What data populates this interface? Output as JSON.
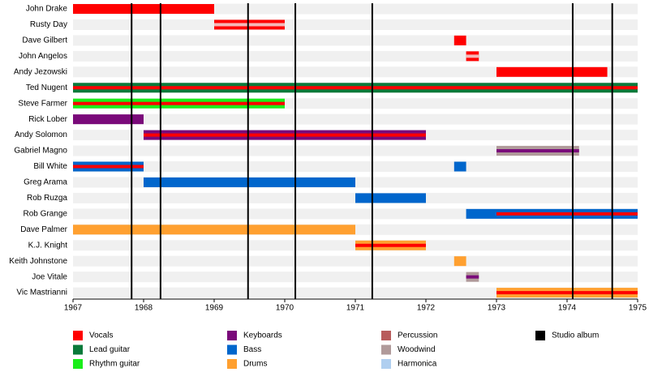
{
  "chart_data": {
    "type": "timeline",
    "xlim": [
      1967,
      1975
    ],
    "xticks": [
      1967,
      1968,
      1969,
      1970,
      1971,
      1972,
      1973,
      1974,
      1975
    ],
    "members": [
      {
        "name": "John Drake",
        "spans": [
          {
            "start": 1967,
            "end": 1969,
            "color": "#ff0000"
          }
        ]
      },
      {
        "name": "Rusty Day",
        "spans": [
          {
            "start": 1969,
            "end": 1970,
            "color": "#ff0000",
            "stripe": "#f4b8b8"
          }
        ]
      },
      {
        "name": "Dave Gilbert",
        "spans": [
          {
            "start": 1972.4,
            "end": 1972.57,
            "color": "#ff0000"
          }
        ]
      },
      {
        "name": "John Angelos",
        "spans": [
          {
            "start": 1972.57,
            "end": 1972.75,
            "color": "#ff0000",
            "stripe": "#f4b8b8"
          }
        ]
      },
      {
        "name": "Andy Jezowski",
        "spans": [
          {
            "start": 1973,
            "end": 1974.57,
            "color": "#ff0000"
          }
        ]
      },
      {
        "name": "Ted Nugent",
        "spans": [
          {
            "start": 1967,
            "end": 1975,
            "color": "#0a7a3a",
            "stripe": "#ff0000"
          }
        ]
      },
      {
        "name": "Steve Farmer",
        "spans": [
          {
            "start": 1967,
            "end": 1970,
            "color": "#1aee1a",
            "stripe": "#ff0000"
          }
        ]
      },
      {
        "name": "Rick Lober",
        "spans": [
          {
            "start": 1967,
            "end": 1968,
            "color": "#7a0a7a"
          }
        ]
      },
      {
        "name": "Andy Solomon",
        "spans": [
          {
            "start": 1968,
            "end": 1972,
            "color": "#7a0a7a",
            "stripe": "#ff0000"
          }
        ]
      },
      {
        "name": "Gabriel Magno",
        "spans": [
          {
            "start": 1973,
            "end": 1974.17,
            "color": "#b09a9a",
            "stripe": "#7a0a7a"
          }
        ]
      },
      {
        "name": "Bill White",
        "spans": [
          {
            "start": 1967,
            "end": 1968,
            "color": "#0066cc",
            "stripe": "#ff0000"
          },
          {
            "start": 1972.4,
            "end": 1972.57,
            "color": "#0066cc"
          }
        ]
      },
      {
        "name": "Greg Arama",
        "spans": [
          {
            "start": 1968,
            "end": 1971,
            "color": "#0066cc"
          }
        ]
      },
      {
        "name": "Rob Ruzga",
        "spans": [
          {
            "start": 1971,
            "end": 1972,
            "color": "#0066cc"
          }
        ]
      },
      {
        "name": "Rob Grange",
        "spans": [
          {
            "start": 1972.57,
            "end": 1973,
            "color": "#0066cc"
          },
          {
            "start": 1973,
            "end": 1975,
            "color": "#0066cc",
            "stripe": "#ff0000"
          }
        ]
      },
      {
        "name": "Dave Palmer",
        "spans": [
          {
            "start": 1967,
            "end": 1971,
            "color": "#ffa030"
          }
        ]
      },
      {
        "name": "K.J. Knight",
        "spans": [
          {
            "start": 1971,
            "end": 1972,
            "color": "#ffa030",
            "stripe": "#ff0000"
          }
        ]
      },
      {
        "name": "Keith Johnstone",
        "spans": [
          {
            "start": 1972.4,
            "end": 1972.57,
            "color": "#ffa030"
          }
        ]
      },
      {
        "name": "Joe Vitale",
        "spans": [
          {
            "start": 1972.57,
            "end": 1972.75,
            "color": "#b09a9a",
            "stripe": "#7a0a7a"
          }
        ]
      },
      {
        "name": "Vic Mastrianni",
        "spans": [
          {
            "start": 1973,
            "end": 1975,
            "color": "#ffa030",
            "stripe": "#ff0000"
          }
        ]
      }
    ],
    "albums": [
      1967.83,
      1968.24,
      1969.48,
      1970.15,
      1971.24,
      1974.08,
      1974.64
    ],
    "album_color": "#000000",
    "legend": [
      {
        "name": "Vocals",
        "color": "#ff0000"
      },
      {
        "name": "Lead guitar",
        "color": "#0a7a3a"
      },
      {
        "name": "Rhythm guitar",
        "color": "#1aee1a"
      },
      {
        "name": "Keyboards",
        "color": "#7a0a7a"
      },
      {
        "name": "Bass",
        "color": "#0066cc"
      },
      {
        "name": "Drums",
        "color": "#ffa030"
      },
      {
        "name": "Percussion",
        "color": "#b85c5c"
      },
      {
        "name": "Woodwind",
        "color": "#b09a9a"
      },
      {
        "name": "Harmonica",
        "color": "#b0cff0"
      },
      {
        "name": "Studio album",
        "color": "#000000"
      }
    ]
  }
}
